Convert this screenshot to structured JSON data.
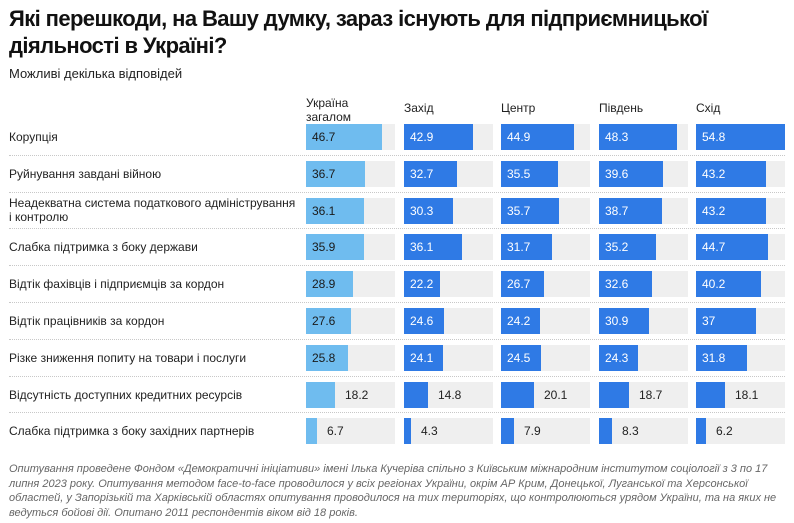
{
  "title": "Які перешкоди, на Вашу думку, зараз існують для підприємницької діяльності в Україні?",
  "subtitle": "Можливі декілька відповідей",
  "footer": "Опитування проведене Фондом «Демократичні ініціативи» імені Ілька Кучеріва спільно з Київським міжнародним інститутом соціології з 3 по 17 липня 2023 року. Опитування методом face-to-face проводилося у всіх регіонах України, окрім АР Крим, Донецької, Луганської та Херсонської областей, у Запорізькій та Харківській областях опитування проводилося на тих територіях, що контролюються урядом України, та на яких не ведуться бойові дії. Опитано 2011 респондентів віком від 18 років.",
  "colors": {
    "total": "#6fbcef",
    "region": "#2f7ae5",
    "track": "#efefef",
    "label_on_total": "#1a1a1a",
    "label_on_region": "#ffffff"
  },
  "chart_data": {
    "type": "bar",
    "title": "Які перешкоди, на Вашу думку, зараз існують для підприємницької діяльності в Україні?",
    "subtitle": "Можливі декілька відповідей",
    "xlim": [
      0,
      55
    ],
    "categories": [
      "Корупція",
      "Руйнування завдані війною",
      "Неадекватна система податкового адміністрування і контролю",
      "Слабка підтримка з боку держави",
      "Відтік фахівців і підприємців за кордон",
      "Відтік працівників за кордон",
      "Різке зниження попиту на товари і послуги",
      "Відсутність доступних кредитних ресурсів",
      "Слабка підтримка з боку західних партнерів"
    ],
    "series": [
      {
        "name": "Україна загалом",
        "values": [
          46.7,
          36.7,
          36.1,
          35.9,
          28.9,
          27.6,
          25.8,
          18.2,
          6.7
        ],
        "labels": [
          "46.7",
          "36.7",
          "36.1",
          "35.9",
          "28.9",
          "27.6",
          "25.8",
          "18.2",
          "6.7"
        ]
      },
      {
        "name": "Захід",
        "values": [
          42.9,
          32.7,
          30.3,
          36.1,
          22.2,
          24.6,
          24.1,
          14.8,
          4.3
        ],
        "labels": [
          "42.9",
          "32.7",
          "30.3",
          "36.1",
          "22.2",
          "24.6",
          "24.1",
          "14.8",
          "4.3"
        ]
      },
      {
        "name": "Центр",
        "values": [
          44.9,
          35.5,
          35.7,
          31.7,
          26.7,
          24.2,
          24.5,
          20.1,
          7.9
        ],
        "labels": [
          "44.9",
          "35.5",
          "35.7",
          "31.7",
          "26.7",
          "24.2",
          "24.5",
          "20.1",
          "7.9"
        ]
      },
      {
        "name": "Південь",
        "values": [
          48.3,
          39.6,
          38.7,
          35.2,
          32.6,
          30.9,
          24.3,
          18.7,
          8.3
        ],
        "labels": [
          "48.3",
          "39.6",
          "38.7",
          "35.2",
          "32.6",
          "30.9",
          "24.3",
          "18.7",
          "8.3"
        ]
      },
      {
        "name": "Схід",
        "values": [
          54.8,
          43.2,
          43.2,
          44.7,
          40.2,
          37,
          31.8,
          18.1,
          6.2
        ],
        "labels": [
          "54.8",
          "43.2",
          "43.2",
          "44.7",
          "40.2",
          "37",
          "31.8",
          "18.1",
          "6.2"
        ]
      }
    ]
  }
}
